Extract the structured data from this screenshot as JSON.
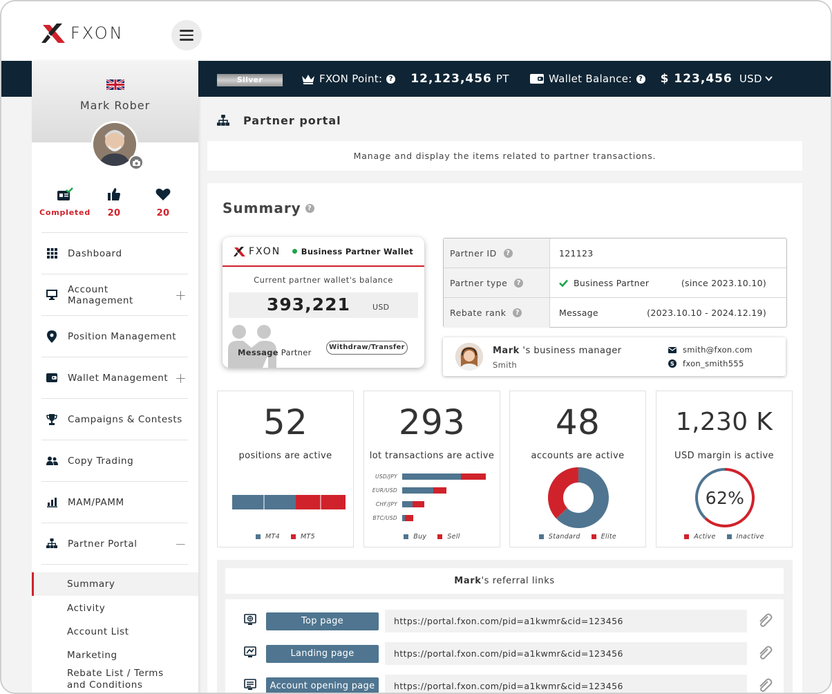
{
  "header": {
    "brand": "FXON"
  },
  "status_bar": {
    "rank": "Silver",
    "points_label": "FXON Point:",
    "points_value": "12,123,456",
    "points_unit": "PT",
    "wallet_label": "Wallet Balance:",
    "wallet_value": "$ 123,456",
    "wallet_currency": "USD"
  },
  "sidebar": {
    "username": "Mark Rober",
    "stats": [
      {
        "label": "Completed"
      },
      {
        "value": "20"
      },
      {
        "value": "20"
      }
    ],
    "items": [
      {
        "label": "Dashboard",
        "icon": "grid-icon"
      },
      {
        "label": "Account Management",
        "icon": "monitor-icon",
        "toggle": "+"
      },
      {
        "label": "Position Management",
        "icon": "map-pin-icon"
      },
      {
        "label": "Wallet Management",
        "icon": "wallet-icon",
        "toggle": "+"
      },
      {
        "label": "Campaigns & Contests",
        "icon": "trophy-icon"
      },
      {
        "label": "Copy Trading",
        "icon": "users-icon"
      },
      {
        "label": "MAM/PAMM",
        "icon": "bar-chart-icon"
      },
      {
        "label": "Partner Portal",
        "icon": "sitemap-icon",
        "toggle": "−"
      }
    ],
    "sub_items": [
      "Summary",
      "Activity",
      "Account List",
      "Marketing",
      "Rebate List / Terms and Conditions"
    ]
  },
  "page": {
    "title": "Partner portal",
    "description": "Manage and display the items related to partner transactions.",
    "summary_title": "Summary"
  },
  "wallet_card": {
    "brand": "FXON",
    "name": "Business Partner Wallet",
    "subtitle": "Current partner wallet's balance",
    "amount": "393,221",
    "currency": "USD",
    "message_bold": "Message",
    "message_rest": " Partner",
    "button": "Withdraw/Transfer"
  },
  "partner_info": {
    "rows": [
      {
        "key": "Partner ID",
        "value": "121123",
        "extra": ""
      },
      {
        "key": "Partner type",
        "value": "Business Partner",
        "extra": "(since 2023.10.10)"
      },
      {
        "key": "Rebate rank",
        "value": "Message",
        "extra": "(2023.10.10 - 2024.12.19)"
      }
    ]
  },
  "manager": {
    "name_bold": "Mark",
    "name_rest": " 's business manager",
    "sub": "Smith",
    "email": "smith@fxon.com",
    "skype": "fxon_smith555"
  },
  "kpis": [
    {
      "value": "52",
      "label": "positions are active",
      "legend": [
        "MT4",
        "MT5"
      ]
    },
    {
      "value": "293",
      "label": "lot transactions are active",
      "legend": [
        "Buy",
        "Sell"
      ]
    },
    {
      "value": "48",
      "label": "accounts are active",
      "legend": [
        "Standard",
        "Elite"
      ]
    },
    {
      "value": "1,230 K",
      "label": "USD margin is active",
      "legend": [
        "Active",
        "Inactive"
      ]
    }
  ],
  "chart_data": [
    {
      "type": "bar",
      "categories": [
        ""
      ],
      "series": [
        {
          "name": "MT4",
          "values": [
            92
          ]
        },
        {
          "name": "MT5",
          "values": [
            72
          ]
        }
      ]
    },
    {
      "type": "bar",
      "categories": [
        "USD/JPY",
        "EUR/USD",
        "CHF/JPY",
        "BTC/USD"
      ],
      "series": [
        {
          "name": "Buy",
          "values": [
            85,
            45,
            15,
            4
          ]
        },
        {
          "name": "Sell",
          "values": [
            36,
            19,
            17,
            12
          ]
        }
      ]
    },
    {
      "type": "pie",
      "categories": [
        "Standard",
        "Elite"
      ],
      "values": [
        63,
        37
      ]
    },
    {
      "type": "pie",
      "categories": [
        "Active",
        "Inactive"
      ],
      "values": [
        62,
        38
      ],
      "center_label": "62%"
    }
  ],
  "colors": {
    "blue": "#4f7590",
    "red": "#d0222b",
    "navy": "#0f2535"
  },
  "referral": {
    "title_bold": "Mark",
    "title_rest": "'s referral links",
    "links": [
      {
        "label": "Top page",
        "url": "https://portal.fxon.com/pid=a1kwmr&cid=123456"
      },
      {
        "label": "Landing page",
        "url": "https://portal.fxon.com/pid=a1kwmr&cid=123456"
      },
      {
        "label": "Account opening page",
        "url": "https://portal.fxon.com/pid=a1kwmr&cid=123456"
      }
    ]
  }
}
